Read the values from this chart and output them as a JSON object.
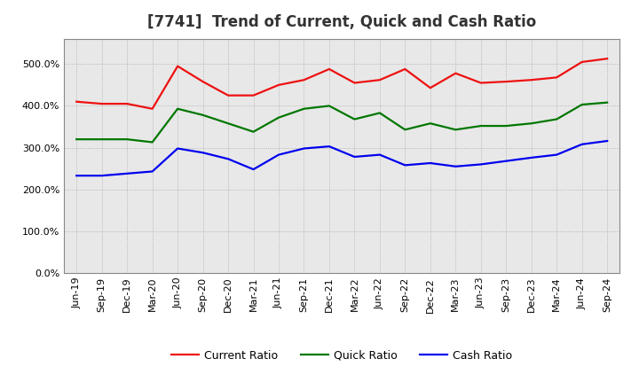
{
  "title": "[7741]  Trend of Current, Quick and Cash Ratio",
  "labels": [
    "Jun-19",
    "Sep-19",
    "Dec-19",
    "Mar-20",
    "Jun-20",
    "Sep-20",
    "Dec-20",
    "Mar-21",
    "Jun-21",
    "Sep-21",
    "Dec-21",
    "Mar-22",
    "Jun-22",
    "Sep-22",
    "Dec-22",
    "Mar-23",
    "Jun-23",
    "Sep-23",
    "Dec-23",
    "Mar-24",
    "Jun-24",
    "Sep-24"
  ],
  "current_ratio": [
    410,
    405,
    405,
    393,
    495,
    458,
    425,
    425,
    450,
    462,
    488,
    455,
    462,
    488,
    443,
    478,
    455,
    458,
    462,
    468,
    505,
    513
  ],
  "quick_ratio": [
    320,
    320,
    320,
    313,
    393,
    378,
    358,
    338,
    372,
    393,
    400,
    368,
    383,
    343,
    358,
    343,
    352,
    352,
    358,
    368,
    403,
    408
  ],
  "cash_ratio": [
    233,
    233,
    238,
    243,
    298,
    288,
    273,
    248,
    283,
    298,
    303,
    278,
    283,
    258,
    263,
    255,
    260,
    268,
    276,
    283,
    308,
    316
  ],
  "ylim": [
    0,
    560
  ],
  "yticks": [
    0,
    100,
    200,
    300,
    400,
    500
  ],
  "current_color": "#ee1111",
  "quick_color": "#007700",
  "cash_color": "#0000ee",
  "background_color": "#ffffff",
  "plot_bg_color": "#f0f0f0",
  "grid_color": "#999999",
  "title_fontsize": 12,
  "legend_fontsize": 9,
  "tick_fontsize": 8
}
